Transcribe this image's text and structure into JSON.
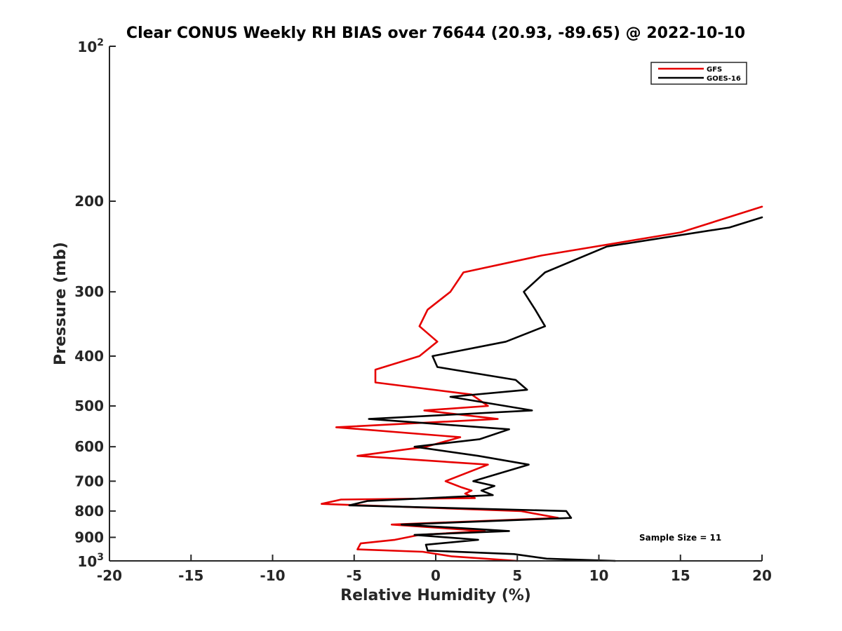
{
  "chart_data": {
    "type": "line",
    "title": "Clear CONUS Weekly RH BIAS over 76644 (20.93, -89.65) @ 2022-10-10",
    "xlabel": "Relative Humidity (%)",
    "ylabel": "Pressure (mb)",
    "xlim": [
      -20,
      20
    ],
    "ylim": [
      100,
      1000
    ],
    "yscale": "log",
    "y_reversed": true,
    "grid": false,
    "legend_position": "top-right",
    "x_ticks": [
      "-20",
      "-15",
      "-10",
      "-5",
      "0",
      "5",
      "10",
      "15",
      "20"
    ],
    "y_ticks": [
      {
        "value": 100,
        "base": "10",
        "exp": "2"
      },
      {
        "value": 200,
        "label": "200"
      },
      {
        "value": 300,
        "label": "300"
      },
      {
        "value": 400,
        "label": "400"
      },
      {
        "value": 500,
        "label": "500"
      },
      {
        "value": 600,
        "label": "600"
      },
      {
        "value": 700,
        "label": "700"
      },
      {
        "value": 800,
        "label": "800"
      },
      {
        "value": 900,
        "label": "900"
      },
      {
        "value": 1000,
        "base": "10",
        "exp": "3"
      }
    ],
    "series": [
      {
        "name": "GFS",
        "color": "#e60000",
        "rh": [
          5.0,
          1.0,
          -0.8,
          -4.8,
          -4.6,
          -2.5,
          -1.0,
          3.0,
          -2.7,
          7.5,
          5.2,
          -7.0,
          -5.8,
          2.4,
          1.8,
          2.2,
          1.6,
          0.6,
          3.2,
          -4.8,
          -0.6,
          1.5,
          -6.1,
          3.8,
          -0.7,
          3.2,
          2.2,
          -3.7,
          -3.7,
          -1.0,
          0.1,
          -1.0,
          -0.5,
          0.9,
          1.7,
          6.5,
          15.0,
          20.0
        ],
        "pressure": [
          1000,
          980,
          960,
          950,
          925,
          910,
          890,
          875,
          850,
          825,
          800,
          775,
          760,
          755,
          740,
          730,
          720,
          700,
          650,
          625,
          600,
          575,
          550,
          530,
          510,
          500,
          475,
          450,
          425,
          400,
          375,
          350,
          325,
          300,
          275,
          255,
          230,
          205
        ]
      },
      {
        "name": "GOES-16",
        "color": "#000000",
        "rh": [
          11.0,
          6.8,
          4.8,
          -0.5,
          -0.6,
          2.6,
          -1.3,
          4.5,
          -2.1,
          8.3,
          8.0,
          -5.3,
          -4.2,
          3.5,
          2.8,
          3.6,
          2.3,
          5.7,
          2.6,
          -1.3,
          2.7,
          4.5,
          -4.1,
          5.9,
          0.9,
          5.6,
          4.9,
          0.1,
          -0.2,
          4.3,
          6.7,
          6.1,
          5.4,
          6.7,
          10.5,
          18.0,
          20.0
        ],
        "pressure": [
          1000,
          990,
          970,
          955,
          930,
          910,
          890,
          875,
          850,
          825,
          800,
          780,
          765,
          745,
          730,
          715,
          700,
          650,
          625,
          600,
          580,
          555,
          530,
          510,
          480,
          465,
          445,
          420,
          400,
          375,
          350,
          325,
          300,
          275,
          245,
          225,
          215
        ]
      }
    ],
    "annotation": "Sample Size = 11"
  }
}
